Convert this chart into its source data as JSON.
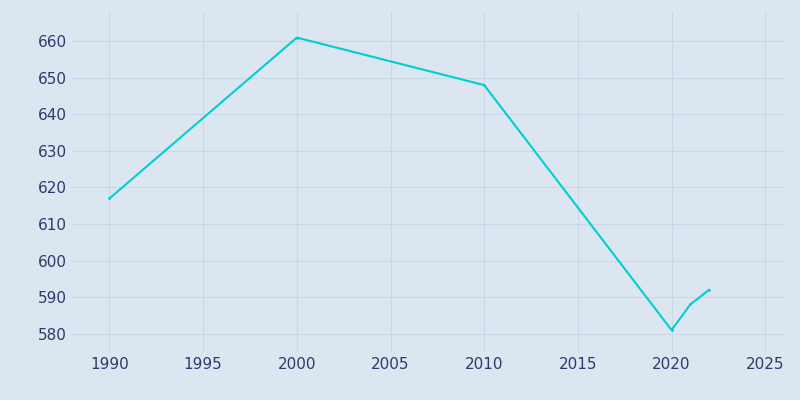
{
  "years": [
    1990,
    2000,
    2010,
    2020,
    2021,
    2022
  ],
  "population": [
    617,
    661,
    648,
    581,
    588,
    592
  ],
  "line_color": "#00CED1",
  "bg_color": "#dce6f0",
  "axes_bg_color": "#dce6f0",
  "grid_color": "#c8d8e8",
  "xlim": [
    1988,
    2026
  ],
  "ylim": [
    575,
    668
  ],
  "xticks": [
    1990,
    1995,
    2000,
    2005,
    2010,
    2015,
    2020,
    2025
  ],
  "yticks": [
    580,
    590,
    600,
    610,
    620,
    630,
    640,
    650,
    660
  ],
  "tick_color": "#2d3a6e",
  "tick_fontsize": 11,
  "linewidth": 1.5
}
